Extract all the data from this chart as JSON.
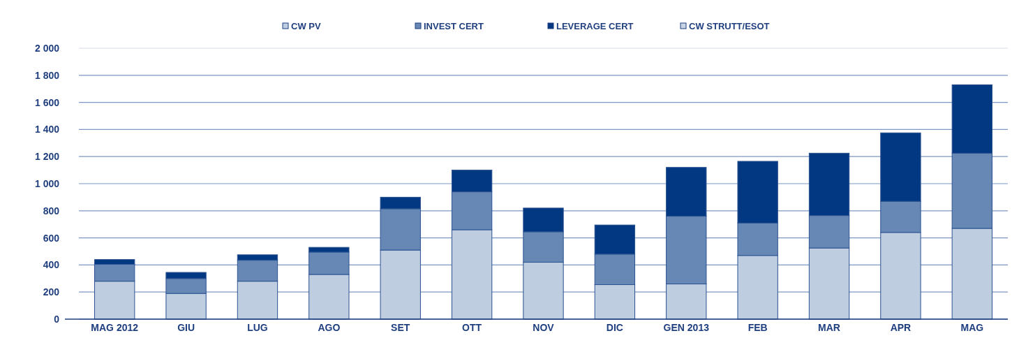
{
  "chart_data": {
    "type": "bar",
    "stacked": true,
    "categories": [
      "MAG 2012",
      "GIU",
      "LUG",
      "AGO",
      "SET",
      "OTT",
      "NOV",
      "DIC",
      "GEN 2013",
      "FEB",
      "MAR",
      "APR",
      "MAG"
    ],
    "series": [
      {
        "name": "CW PV",
        "color": "#bfcde0",
        "values": [
          280,
          190,
          280,
          330,
          510,
          660,
          420,
          255,
          260,
          470,
          525,
          640,
          670
        ]
      },
      {
        "name": "INVEST CERT",
        "color": "#6788b5",
        "values": [
          125,
          110,
          155,
          165,
          305,
          280,
          225,
          225,
          500,
          240,
          240,
          230,
          555
        ]
      },
      {
        "name": "LEVERAGE CERT",
        "color": "#023882",
        "values": [
          35,
          45,
          40,
          35,
          85,
          160,
          175,
          215,
          360,
          455,
          460,
          505,
          505
        ]
      },
      {
        "name": "CW STRUTT/ESOT",
        "color": "#c9d4e6",
        "values": [
          0,
          0,
          0,
          0,
          0,
          0,
          0,
          0,
          0,
          0,
          0,
          0,
          0
        ]
      }
    ],
    "ylim": [
      0,
      2000
    ],
    "yticks": [
      0,
      200,
      400,
      600,
      800,
      {
        "value": 1000,
        "label": "1 000"
      },
      {
        "value": 1200,
        "label": "1 200"
      },
      {
        "value": 1400,
        "label": "1 400"
      },
      {
        "value": 1600,
        "label": "1 600"
      },
      {
        "value": 1800,
        "label": "1 800"
      },
      {
        "value": 2000,
        "label": "2 000"
      }
    ],
    "grid": "y",
    "legend": "top"
  }
}
